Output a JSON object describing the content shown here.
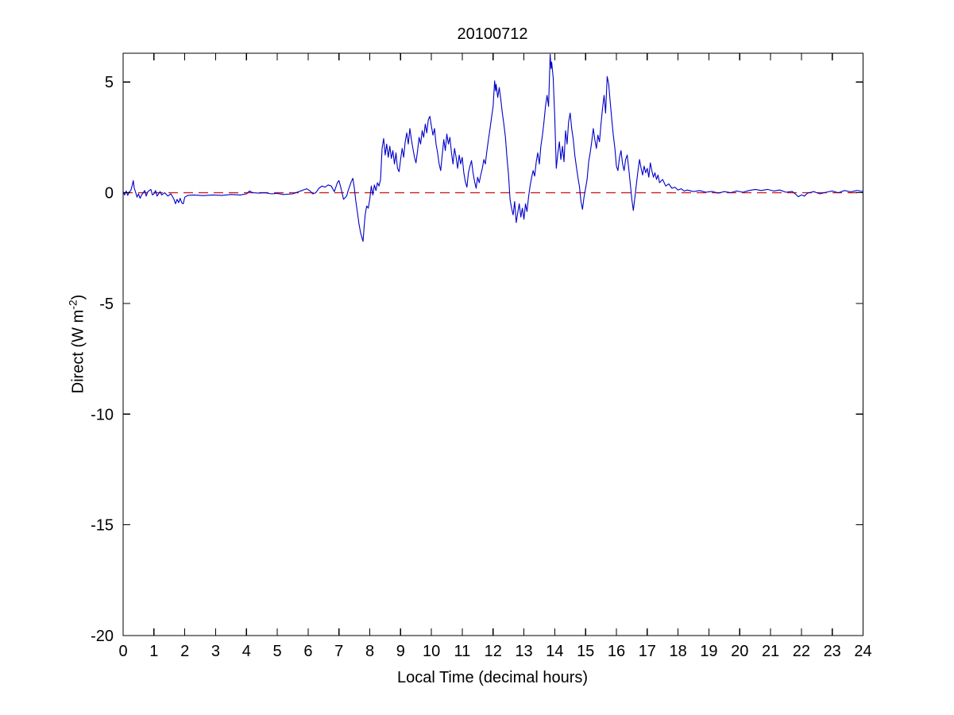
{
  "chart_data": {
    "type": "line",
    "title": "20100712",
    "xlabel": "Local Time (decimal hours)",
    "ylabel": {
      "text_prefix": "Direct (W m",
      "superscript": "-2",
      "text_suffix": ")"
    },
    "xlim": [
      0,
      24
    ],
    "ylim": [
      -20,
      6.3
    ],
    "xticks": [
      0,
      1,
      2,
      3,
      4,
      5,
      6,
      7,
      8,
      9,
      10,
      11,
      12,
      13,
      14,
      15,
      16,
      17,
      18,
      19,
      20,
      21,
      22,
      23,
      24
    ],
    "yticks": [
      5,
      0,
      -5,
      -10,
      -15,
      -20
    ],
    "grid": false,
    "legend": "none",
    "background_color": "#ffffff",
    "axis_color": "#000000",
    "series": [
      {
        "name": "zero-reference",
        "color": "#cc2222",
        "style": "dashed",
        "points": [
          [
            0,
            0
          ],
          [
            24,
            0
          ]
        ]
      },
      {
        "name": "direct-irradiance",
        "color": "#0000c8",
        "style": "solid",
        "points": [
          [
            0.0,
            0.05
          ],
          [
            0.05,
            -0.1
          ],
          [
            0.1,
            0.08
          ],
          [
            0.15,
            -0.12
          ],
          [
            0.2,
            0.05
          ],
          [
            0.25,
            0.1
          ],
          [
            0.3,
            0.35
          ],
          [
            0.33,
            0.55
          ],
          [
            0.36,
            0.2
          ],
          [
            0.4,
            0.05
          ],
          [
            0.45,
            -0.2
          ],
          [
            0.5,
            -0.05
          ],
          [
            0.55,
            -0.25
          ],
          [
            0.6,
            -0.1
          ],
          [
            0.7,
            0.1
          ],
          [
            0.75,
            -0.15
          ],
          [
            0.8,
            0.05
          ],
          [
            0.9,
            0.15
          ],
          [
            0.95,
            -0.1
          ],
          [
            1.0,
            -0.05
          ],
          [
            1.05,
            0.1
          ],
          [
            1.1,
            -0.15
          ],
          [
            1.2,
            0.05
          ],
          [
            1.25,
            -0.1
          ],
          [
            1.35,
            0.0
          ],
          [
            1.45,
            -0.15
          ],
          [
            1.55,
            -0.05
          ],
          [
            1.65,
            -0.3
          ],
          [
            1.7,
            -0.5
          ],
          [
            1.75,
            -0.3
          ],
          [
            1.8,
            -0.45
          ],
          [
            1.85,
            -0.25
          ],
          [
            1.9,
            -0.45
          ],
          [
            1.95,
            -0.5
          ],
          [
            2.0,
            -0.2
          ],
          [
            2.1,
            -0.12
          ],
          [
            2.3,
            -0.1
          ],
          [
            2.6,
            -0.13
          ],
          [
            2.9,
            -0.1
          ],
          [
            3.2,
            -0.12
          ],
          [
            3.5,
            -0.08
          ],
          [
            3.8,
            -0.1
          ],
          [
            4.0,
            -0.05
          ],
          [
            4.1,
            0.08
          ],
          [
            4.2,
            0.0
          ],
          [
            4.4,
            -0.02
          ],
          [
            4.6,
            0.0
          ],
          [
            4.8,
            -0.05
          ],
          [
            5.0,
            -0.03
          ],
          [
            5.2,
            -0.08
          ],
          [
            5.5,
            -0.05
          ],
          [
            5.8,
            0.1
          ],
          [
            5.95,
            0.18
          ],
          [
            6.05,
            0.1
          ],
          [
            6.15,
            -0.05
          ],
          [
            6.25,
            0.0
          ],
          [
            6.35,
            0.2
          ],
          [
            6.45,
            0.3
          ],
          [
            6.55,
            0.25
          ],
          [
            6.65,
            0.35
          ],
          [
            6.75,
            0.3
          ],
          [
            6.85,
            0.05
          ],
          [
            6.95,
            0.45
          ],
          [
            7.0,
            0.55
          ],
          [
            7.05,
            0.3
          ],
          [
            7.1,
            0.0
          ],
          [
            7.15,
            -0.3
          ],
          [
            7.25,
            -0.15
          ],
          [
            7.3,
            0.1
          ],
          [
            7.4,
            0.5
          ],
          [
            7.45,
            0.65
          ],
          [
            7.5,
            0.2
          ],
          [
            7.55,
            -0.4
          ],
          [
            7.6,
            -0.9
          ],
          [
            7.65,
            -1.4
          ],
          [
            7.7,
            -1.8
          ],
          [
            7.78,
            -2.2
          ],
          [
            7.82,
            -1.5
          ],
          [
            7.85,
            -1.0
          ],
          [
            7.9,
            -0.6
          ],
          [
            7.95,
            -0.7
          ],
          [
            8.0,
            -0.3
          ],
          [
            8.05,
            0.3
          ],
          [
            8.1,
            -0.1
          ],
          [
            8.15,
            0.35
          ],
          [
            8.2,
            0.1
          ],
          [
            8.25,
            0.45
          ],
          [
            8.3,
            0.3
          ],
          [
            8.35,
            0.6
          ],
          [
            8.4,
            2.0
          ],
          [
            8.45,
            2.45
          ],
          [
            8.5,
            1.7
          ],
          [
            8.55,
            2.2
          ],
          [
            8.6,
            1.6
          ],
          [
            8.65,
            2.1
          ],
          [
            8.7,
            1.55
          ],
          [
            8.75,
            1.9
          ],
          [
            8.8,
            1.3
          ],
          [
            8.85,
            1.8
          ],
          [
            8.9,
            1.1
          ],
          [
            8.95,
            0.95
          ],
          [
            9.0,
            1.5
          ],
          [
            9.05,
            2.0
          ],
          [
            9.1,
            1.6
          ],
          [
            9.15,
            2.3
          ],
          [
            9.2,
            2.7
          ],
          [
            9.25,
            2.2
          ],
          [
            9.3,
            2.9
          ],
          [
            9.35,
            2.4
          ],
          [
            9.4,
            2.0
          ],
          [
            9.45,
            1.6
          ],
          [
            9.5,
            1.35
          ],
          [
            9.55,
            1.9
          ],
          [
            9.6,
            2.5
          ],
          [
            9.65,
            2.2
          ],
          [
            9.7,
            2.8
          ],
          [
            9.75,
            2.5
          ],
          [
            9.8,
            3.1
          ],
          [
            9.85,
            2.7
          ],
          [
            9.9,
            3.3
          ],
          [
            9.95,
            3.45
          ],
          [
            10.0,
            3.0
          ],
          [
            10.05,
            2.6
          ],
          [
            10.1,
            2.9
          ],
          [
            10.15,
            2.2
          ],
          [
            10.2,
            1.8
          ],
          [
            10.25,
            1.3
          ],
          [
            10.3,
            1.0
          ],
          [
            10.35,
            1.7
          ],
          [
            10.4,
            2.4
          ],
          [
            10.45,
            1.9
          ],
          [
            10.5,
            2.65
          ],
          [
            10.55,
            2.2
          ],
          [
            10.6,
            2.5
          ],
          [
            10.65,
            1.8
          ],
          [
            10.7,
            1.3
          ],
          [
            10.75,
            2.0
          ],
          [
            10.8,
            1.6
          ],
          [
            10.85,
            1.1
          ],
          [
            10.9,
            1.7
          ],
          [
            10.95,
            1.3
          ],
          [
            11.0,
            1.6
          ],
          [
            11.05,
            0.9
          ],
          [
            11.1,
            0.5
          ],
          [
            11.15,
            0.25
          ],
          [
            11.2,
            0.9
          ],
          [
            11.25,
            1.2
          ],
          [
            11.3,
            1.45
          ],
          [
            11.35,
            0.9
          ],
          [
            11.4,
            0.5
          ],
          [
            11.45,
            0.2
          ],
          [
            11.5,
            0.7
          ],
          [
            11.55,
            0.45
          ],
          [
            11.6,
            0.8
          ],
          [
            11.65,
            1.1
          ],
          [
            11.7,
            1.5
          ],
          [
            11.75,
            1.3
          ],
          [
            11.8,
            1.9
          ],
          [
            11.85,
            2.4
          ],
          [
            11.9,
            2.9
          ],
          [
            11.95,
            3.4
          ],
          [
            12.0,
            3.9
          ],
          [
            12.05,
            5.05
          ],
          [
            12.08,
            4.6
          ],
          [
            12.1,
            4.9
          ],
          [
            12.15,
            4.3
          ],
          [
            12.2,
            4.75
          ],
          [
            12.25,
            4.2
          ],
          [
            12.3,
            3.6
          ],
          [
            12.35,
            3.1
          ],
          [
            12.4,
            2.5
          ],
          [
            12.45,
            1.6
          ],
          [
            12.5,
            0.8
          ],
          [
            12.55,
            -0.3
          ],
          [
            12.6,
            -0.7
          ],
          [
            12.65,
            -1.0
          ],
          [
            12.7,
            -0.4
          ],
          [
            12.75,
            -1.35
          ],
          [
            12.8,
            -0.9
          ],
          [
            12.85,
            -0.5
          ],
          [
            12.9,
            -1.1
          ],
          [
            12.95,
            -0.7
          ],
          [
            13.0,
            -1.2
          ],
          [
            13.05,
            -0.5
          ],
          [
            13.1,
            -0.85
          ],
          [
            13.15,
            -0.2
          ],
          [
            13.2,
            0.3
          ],
          [
            13.25,
            0.7
          ],
          [
            13.3,
            1.0
          ],
          [
            13.35,
            0.75
          ],
          [
            13.4,
            1.4
          ],
          [
            13.45,
            1.8
          ],
          [
            13.5,
            1.3
          ],
          [
            13.55,
            2.1
          ],
          [
            13.6,
            2.6
          ],
          [
            13.65,
            3.2
          ],
          [
            13.7,
            3.9
          ],
          [
            13.75,
            4.4
          ],
          [
            13.8,
            3.9
          ],
          [
            13.85,
            6.25
          ],
          [
            13.88,
            5.6
          ],
          [
            13.9,
            5.9
          ],
          [
            13.95,
            5.2
          ],
          [
            14.0,
            3.4
          ],
          [
            14.05,
            1.1
          ],
          [
            14.1,
            1.8
          ],
          [
            14.15,
            2.3
          ],
          [
            14.2,
            1.5
          ],
          [
            14.25,
            2.1
          ],
          [
            14.3,
            1.4
          ],
          [
            14.35,
            2.8
          ],
          [
            14.4,
            2.2
          ],
          [
            14.45,
            3.2
          ],
          [
            14.5,
            3.6
          ],
          [
            14.55,
            2.9
          ],
          [
            14.6,
            2.4
          ],
          [
            14.65,
            1.7
          ],
          [
            14.7,
            1.2
          ],
          [
            14.75,
            0.7
          ],
          [
            14.8,
            0.3
          ],
          [
            14.85,
            -0.4
          ],
          [
            14.9,
            -0.75
          ],
          [
            14.95,
            -0.2
          ],
          [
            15.0,
            0.2
          ],
          [
            15.05,
            0.6
          ],
          [
            15.1,
            1.4
          ],
          [
            15.15,
            1.8
          ],
          [
            15.2,
            2.3
          ],
          [
            15.25,
            2.9
          ],
          [
            15.3,
            2.4
          ],
          [
            15.35,
            2.0
          ],
          [
            15.4,
            2.6
          ],
          [
            15.45,
            2.3
          ],
          [
            15.5,
            3.1
          ],
          [
            15.55,
            3.8
          ],
          [
            15.6,
            4.4
          ],
          [
            15.65,
            3.6
          ],
          [
            15.7,
            5.25
          ],
          [
            15.75,
            4.9
          ],
          [
            15.8,
            4.1
          ],
          [
            15.85,
            3.3
          ],
          [
            15.9,
            2.6
          ],
          [
            15.95,
            2.0
          ],
          [
            16.0,
            1.2
          ],
          [
            16.05,
            1.0
          ],
          [
            16.1,
            1.6
          ],
          [
            16.15,
            1.9
          ],
          [
            16.2,
            1.3
          ],
          [
            16.25,
            1.0
          ],
          [
            16.3,
            1.5
          ],
          [
            16.35,
            1.7
          ],
          [
            16.4,
            1.1
          ],
          [
            16.45,
            0.4
          ],
          [
            16.5,
            -0.3
          ],
          [
            16.55,
            -0.8
          ],
          [
            16.6,
            -0.2
          ],
          [
            16.65,
            0.4
          ],
          [
            16.7,
            1.0
          ],
          [
            16.75,
            1.5
          ],
          [
            16.8,
            1.1
          ],
          [
            16.85,
            0.8
          ],
          [
            16.9,
            1.2
          ],
          [
            16.95,
            0.9
          ],
          [
            17.0,
            1.1
          ],
          [
            17.05,
            0.7
          ],
          [
            17.1,
            1.35
          ],
          [
            17.15,
            1.0
          ],
          [
            17.2,
            0.7
          ],
          [
            17.25,
            0.9
          ],
          [
            17.3,
            0.6
          ],
          [
            17.35,
            0.8
          ],
          [
            17.4,
            0.45
          ],
          [
            17.5,
            0.6
          ],
          [
            17.6,
            0.3
          ],
          [
            17.7,
            0.4
          ],
          [
            17.8,
            0.2
          ],
          [
            17.9,
            0.25
          ],
          [
            18.0,
            0.12
          ],
          [
            18.1,
            0.18
          ],
          [
            18.2,
            0.08
          ],
          [
            18.3,
            0.12
          ],
          [
            18.5,
            0.05
          ],
          [
            18.7,
            0.1
          ],
          [
            18.9,
            0.02
          ],
          [
            19.1,
            0.06
          ],
          [
            19.3,
            -0.02
          ],
          [
            19.5,
            0.05
          ],
          [
            19.7,
            0.0
          ],
          [
            19.9,
            0.08
          ],
          [
            20.1,
            0.02
          ],
          [
            20.3,
            0.1
          ],
          [
            20.5,
            0.15
          ],
          [
            20.7,
            0.1
          ],
          [
            20.9,
            0.15
          ],
          [
            21.1,
            0.08
          ],
          [
            21.3,
            0.12
          ],
          [
            21.5,
            0.02
          ],
          [
            21.7,
            0.06
          ],
          [
            21.8,
            -0.05
          ],
          [
            21.9,
            -0.18
          ],
          [
            22.0,
            -0.1
          ],
          [
            22.1,
            -0.15
          ],
          [
            22.2,
            -0.02
          ],
          [
            22.4,
            0.05
          ],
          [
            22.6,
            -0.05
          ],
          [
            22.8,
            0.02
          ],
          [
            23.0,
            0.08
          ],
          [
            23.2,
            0.0
          ],
          [
            23.4,
            0.1
          ],
          [
            23.6,
            0.04
          ],
          [
            23.8,
            0.1
          ],
          [
            24.0,
            0.05
          ]
        ]
      }
    ]
  }
}
